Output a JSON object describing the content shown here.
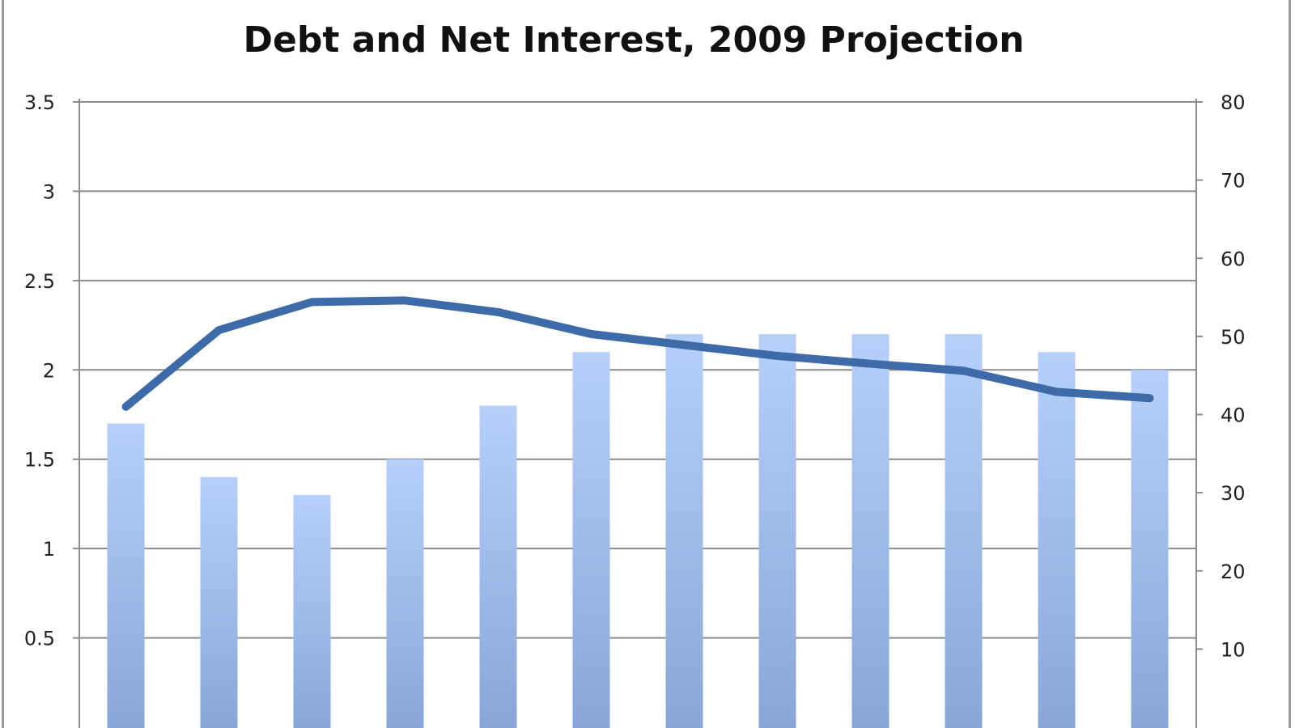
{
  "chart_data": {
    "type": "bar+line",
    "title": "Debt and Net Interest, 2009 Projection",
    "xlabel": "",
    "ylabel": "",
    "y_left": {
      "range": [
        0,
        3.5
      ],
      "ticks": [
        "0.5",
        "1",
        "1.5",
        "2",
        "2.5",
        "3",
        "3.5"
      ]
    },
    "y_right": {
      "range": [
        0,
        80
      ],
      "ticks": [
        "10",
        "20",
        "30",
        "40",
        "50",
        "60",
        "70",
        "80"
      ]
    },
    "grid": true,
    "legend": "none",
    "series": [
      {
        "type": "bar",
        "axis": "left",
        "color": "#a9c4ee",
        "values": [
          1.7,
          1.4,
          1.3,
          1.5,
          1.8,
          2.1,
          2.2,
          2.2,
          2.2,
          2.2,
          2.1,
          2.0
        ]
      },
      {
        "type": "line",
        "axis": "right",
        "color": "#3d6aa8",
        "values": [
          41.0,
          50.8,
          54.4,
          54.6,
          53.1,
          50.3,
          48.9,
          47.5,
          46.5,
          45.6,
          42.9,
          42.1
        ]
      }
    ]
  }
}
